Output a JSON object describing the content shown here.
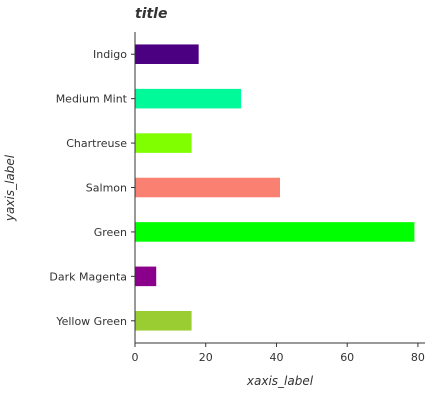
{
  "chart_data": {
    "type": "bar",
    "orientation": "horizontal",
    "title": "title",
    "xlabel": "xaxis_label",
    "ylabel": "yaxis_label",
    "xlim": [
      0,
      82
    ],
    "xticks": [
      0,
      20,
      40,
      60,
      80
    ],
    "grid": false,
    "legend": "none",
    "categories": [
      "Yellow Green",
      "Dark Magenta",
      "Green",
      "Salmon",
      "Chartreuse",
      "Medium Mint",
      "Indigo"
    ],
    "values": [
      16,
      6,
      79,
      41,
      16,
      30,
      18
    ],
    "colors": [
      "#9acd32",
      "#8b008b",
      "#00ff00",
      "#fa8072",
      "#7fff00",
      "#00fa9a",
      "#4b0082"
    ]
  }
}
